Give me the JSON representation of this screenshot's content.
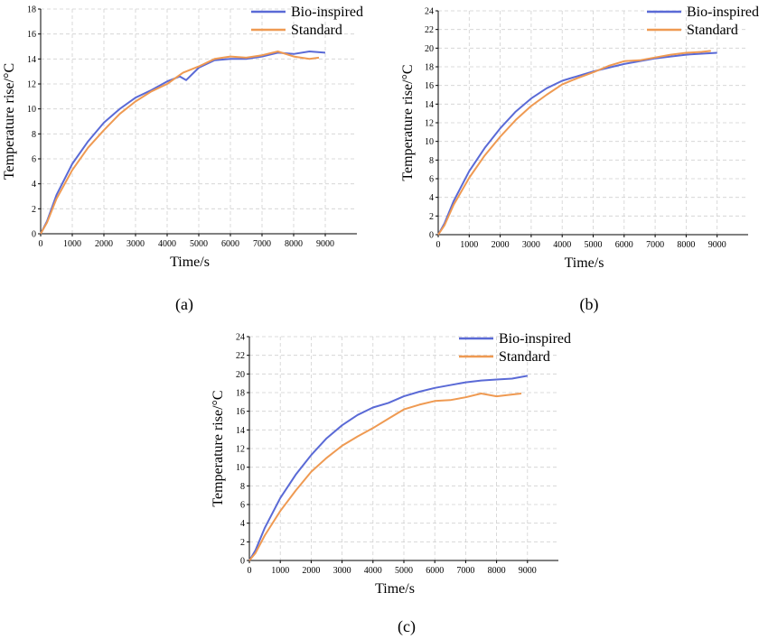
{
  "chart_data": [
    {
      "panel": "(a)",
      "type": "line",
      "xlabel": "Time/s",
      "ylabel": "Temperature rise/°C",
      "xlim": [
        0,
        10000
      ],
      "ylim": [
        0,
        18
      ],
      "xticks": [
        0,
        1000,
        2000,
        3000,
        4000,
        5000,
        6000,
        7000,
        8000,
        9000
      ],
      "yticks": [
        0,
        2,
        4,
        6,
        8,
        10,
        12,
        14,
        16,
        18
      ],
      "grid": true,
      "legend": "top-right",
      "series": [
        {
          "name": "Bio-inspired",
          "color": "#5a6ad6",
          "x": [
            0,
            200,
            500,
            1000,
            1500,
            2000,
            2500,
            3000,
            3500,
            4000,
            4400,
            4600,
            5000,
            5500,
            6000,
            6500,
            7000,
            7500,
            8000,
            8500,
            9000
          ],
          "y": [
            0,
            1.0,
            3.1,
            5.6,
            7.4,
            8.9,
            10.0,
            10.9,
            11.5,
            12.2,
            12.6,
            12.3,
            13.3,
            13.9,
            14.0,
            14.0,
            14.2,
            14.5,
            14.4,
            14.6,
            14.5
          ]
        },
        {
          "name": "Standard",
          "color": "#ef9a52",
          "x": [
            0,
            200,
            500,
            1000,
            1500,
            2000,
            2500,
            3000,
            3500,
            4000,
            4500,
            5000,
            5500,
            6000,
            6500,
            7000,
            7500,
            8000,
            8500,
            8800
          ],
          "y": [
            0,
            0.9,
            2.8,
            5.1,
            6.9,
            8.3,
            9.6,
            10.6,
            11.4,
            12.0,
            12.9,
            13.4,
            14.0,
            14.2,
            14.1,
            14.3,
            14.6,
            14.2,
            14.0,
            14.1
          ]
        }
      ]
    },
    {
      "panel": "(b)",
      "type": "line",
      "xlabel": "Time/s",
      "ylabel": "Temperature rise/°C",
      "xlim": [
        0,
        10000
      ],
      "ylim": [
        0,
        24
      ],
      "xticks": [
        0,
        1000,
        2000,
        3000,
        4000,
        5000,
        6000,
        7000,
        8000,
        9000
      ],
      "yticks": [
        0,
        2,
        4,
        6,
        8,
        10,
        12,
        14,
        16,
        18,
        20,
        22,
        24
      ],
      "grid": true,
      "legend": "top-right",
      "series": [
        {
          "name": "Bio-inspired",
          "color": "#5a6ad6",
          "x": [
            0,
            200,
            500,
            1000,
            1500,
            2000,
            2500,
            3000,
            3500,
            4000,
            4500,
            5000,
            5500,
            6000,
            6500,
            7000,
            7500,
            8000,
            8500,
            9000
          ],
          "y": [
            0,
            1.2,
            3.6,
            6.8,
            9.3,
            11.4,
            13.2,
            14.6,
            15.7,
            16.5,
            17.0,
            17.5,
            17.9,
            18.3,
            18.6,
            18.9,
            19.1,
            19.3,
            19.4,
            19.5
          ]
        },
        {
          "name": "Standard",
          "color": "#ef9a52",
          "x": [
            0,
            200,
            500,
            1000,
            1500,
            2000,
            2500,
            3000,
            3500,
            4000,
            4500,
            5000,
            5500,
            6000,
            6500,
            7000,
            7500,
            8000,
            8500,
            8800
          ],
          "y": [
            0,
            1.0,
            3.2,
            6.1,
            8.5,
            10.5,
            12.3,
            13.8,
            15.0,
            16.1,
            16.8,
            17.4,
            18.1,
            18.6,
            18.7,
            19.0,
            19.3,
            19.5,
            19.6,
            19.7
          ]
        }
      ]
    },
    {
      "panel": "(c)",
      "type": "line",
      "xlabel": "Time/s",
      "ylabel": "Temperature rise/°C",
      "xlim": [
        0,
        10000
      ],
      "ylim": [
        0,
        24
      ],
      "xticks": [
        0,
        1000,
        2000,
        3000,
        4000,
        5000,
        6000,
        7000,
        8000,
        9000
      ],
      "yticks": [
        0,
        2,
        4,
        6,
        8,
        10,
        12,
        14,
        16,
        18,
        20,
        22,
        24
      ],
      "grid": true,
      "legend": "top-right",
      "series": [
        {
          "name": "Bio-inspired",
          "color": "#5a6ad6",
          "x": [
            0,
            200,
            500,
            1000,
            1500,
            2000,
            2500,
            3000,
            3500,
            4000,
            4500,
            5000,
            5500,
            6000,
            6500,
            7000,
            7500,
            8000,
            8500,
            9000
          ],
          "y": [
            0,
            1.1,
            3.5,
            6.7,
            9.2,
            11.3,
            13.1,
            14.5,
            15.6,
            16.4,
            16.9,
            17.6,
            18.1,
            18.5,
            18.8,
            19.1,
            19.3,
            19.4,
            19.5,
            19.8
          ]
        },
        {
          "name": "Standard",
          "color": "#ef9a52",
          "x": [
            0,
            200,
            500,
            1000,
            1500,
            2000,
            2500,
            3000,
            3500,
            4000,
            4500,
            5000,
            5500,
            6000,
            6500,
            7000,
            7500,
            8000,
            8500,
            8800
          ],
          "y": [
            0,
            0.8,
            2.7,
            5.3,
            7.5,
            9.5,
            11.0,
            12.3,
            13.3,
            14.2,
            15.2,
            16.2,
            16.7,
            17.1,
            17.2,
            17.5,
            17.9,
            17.6,
            17.8,
            17.9
          ]
        }
      ]
    }
  ],
  "captions": [
    "(a)",
    "(b)",
    "(c)"
  ]
}
